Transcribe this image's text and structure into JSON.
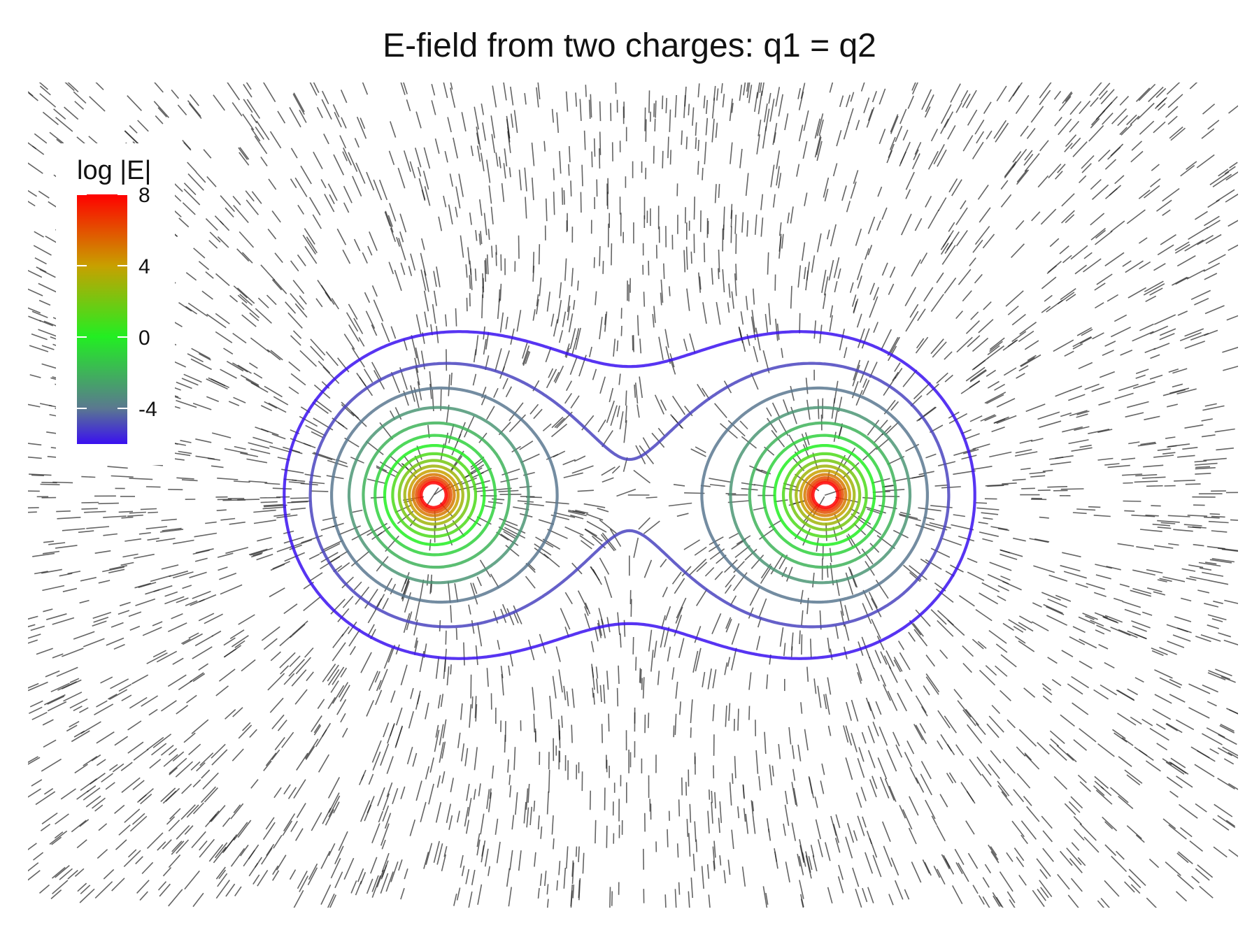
{
  "chart_data": {
    "type": "contour",
    "title": "E-field from two charges: q1 = q2",
    "xlabel": "",
    "ylabel": "",
    "axes_visible": false,
    "charges": [
      {
        "name": "q1",
        "x": -1,
        "y": 0
      },
      {
        "name": "q2",
        "x": 1,
        "y": 0
      }
    ],
    "charges_equal": true,
    "contour_levels": [
      -6,
      -5,
      -4,
      -3,
      -2,
      -1,
      0,
      1,
      2,
      3,
      4,
      5,
      6,
      7,
      8
    ],
    "field_segments": "short black line segments tangent to E, scattered across the field",
    "legend": {
      "title": "log |E|",
      "position": "top-left",
      "range": [
        -6,
        8
      ],
      "ticks": [
        8,
        4,
        0,
        -4
      ],
      "tick_labels": [
        "8",
        "4",
        "0",
        "-4"
      ],
      "colors": {
        "8": "#ff0000",
        "4": "#c8a000",
        "0": "#22ee22",
        "-4": "#5a7890",
        "-6": "#3a10f0"
      }
    }
  }
}
